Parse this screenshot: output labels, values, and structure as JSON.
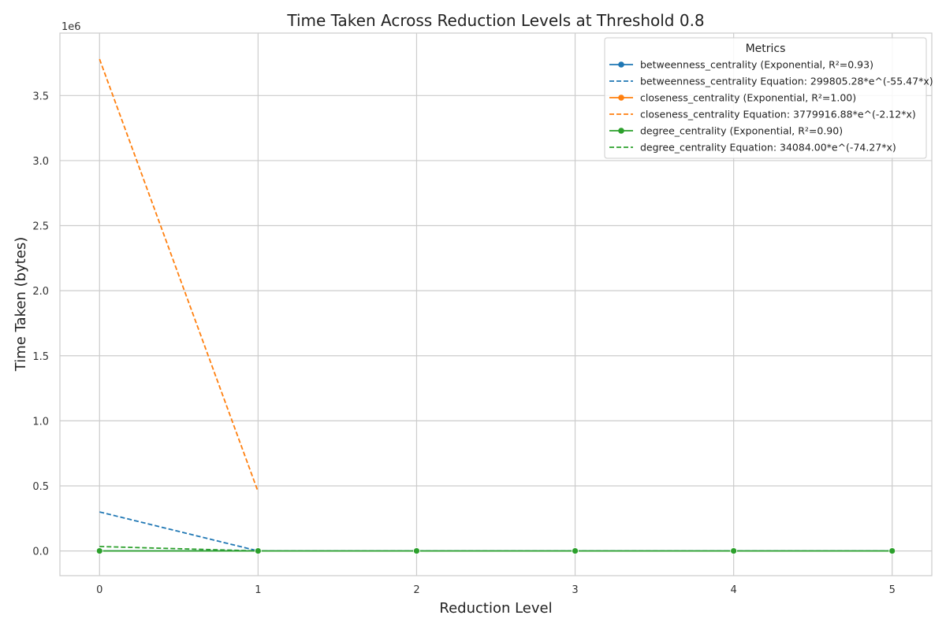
{
  "chart_data": {
    "type": "line",
    "title": "Time Taken Across Reduction Levels at Threshold 0.8",
    "xlabel": "Reduction Level",
    "ylabel": "Time Taken (bytes)",
    "y_offset_label": "1e6",
    "xlim": [
      -0.25,
      5.25
    ],
    "ylim": [
      -0.19,
      3.98
    ],
    "x_ticks": [
      0,
      1,
      2,
      3,
      4,
      5
    ],
    "y_ticks": [
      0.0,
      0.5,
      1.0,
      1.5,
      2.0,
      2.5,
      3.0,
      3.5
    ],
    "y_tick_labels": [
      "0.0",
      "0.5",
      "1.0",
      "1.5",
      "2.0",
      "2.5",
      "3.0",
      "3.5"
    ],
    "grid": true,
    "legend": {
      "title": "Metrics",
      "position": "top-right"
    },
    "series": [
      {
        "name": "betweenness_centrality (Exponential, R²=0.93)",
        "color": "#1f77b4",
        "style": "solid",
        "marker": "circle",
        "x": [
          0,
          1,
          2,
          3,
          4,
          5
        ],
        "y": [
          0.0,
          0.0,
          0.0,
          0.0,
          0.0,
          0.0
        ]
      },
      {
        "name": "betweenness_centrality Equation: 299805.28*e^(-55.47*x)",
        "color": "#1f77b4",
        "style": "dashed",
        "marker": "none",
        "x": [
          0,
          1
        ],
        "y": [
          0.2998,
          0.0
        ]
      },
      {
        "name": "closeness_centrality (Exponential, R²=1.00)",
        "color": "#ff7f0e",
        "style": "solid",
        "marker": "circle",
        "x": [],
        "y": []
      },
      {
        "name": "closeness_centrality Equation: 3779916.88*e^(-2.12*x)",
        "color": "#ff7f0e",
        "style": "dashed",
        "marker": "none",
        "x": [
          0,
          1
        ],
        "y": [
          3.78,
          0.455
        ]
      },
      {
        "name": "degree_centrality (Exponential, R²=0.90)",
        "color": "#2ca02c",
        "style": "solid",
        "marker": "circle",
        "x": [
          0,
          1,
          2,
          3,
          4,
          5
        ],
        "y": [
          0.0,
          0.0,
          0.0,
          0.0,
          0.0,
          0.0
        ]
      },
      {
        "name": "degree_centrality Equation: 34084.00*e^(-74.27*x)",
        "color": "#2ca02c",
        "style": "dashed",
        "marker": "none",
        "x": [
          0,
          1,
          2,
          3,
          4,
          5
        ],
        "y": [
          0.034,
          0.0,
          0.0,
          0.0,
          0.0,
          0.0
        ]
      }
    ]
  }
}
